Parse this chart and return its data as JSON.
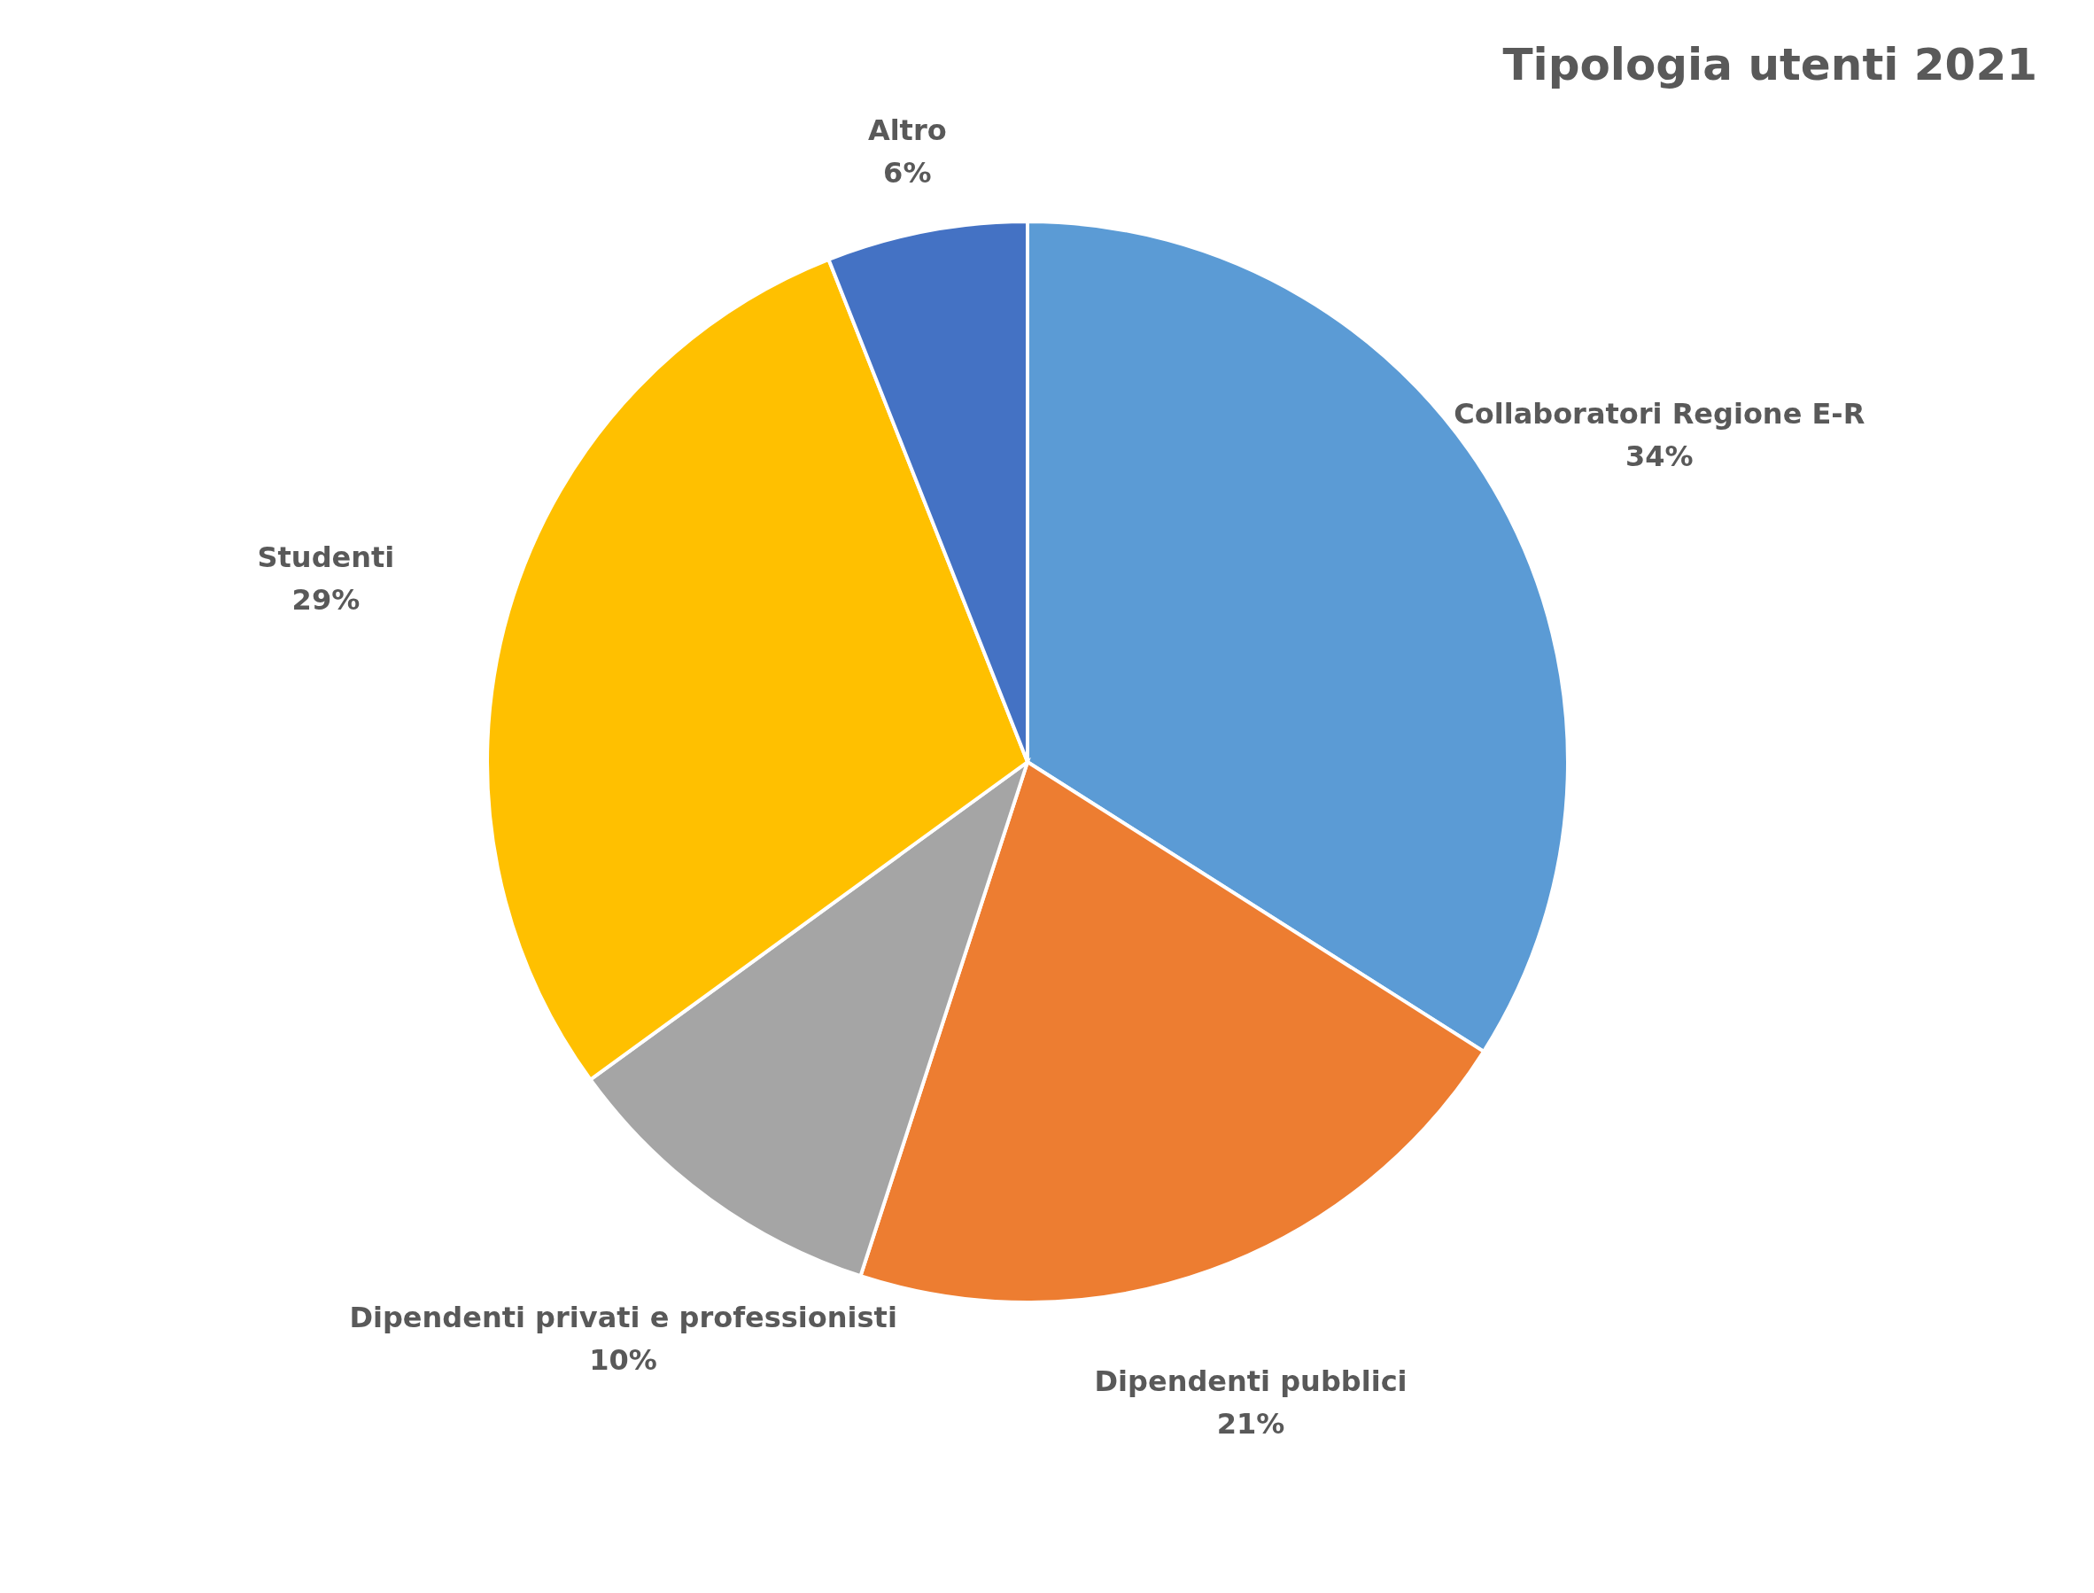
{
  "chart_data": {
    "type": "pie",
    "title": "Tipologia utenti 2021",
    "categories": [
      "Collaboratori Regione E-R",
      "Dipendenti pubblici",
      "Dipendenti privati e professionisti",
      "Studenti",
      "Altro"
    ],
    "values": [
      34,
      21,
      10,
      29,
      6
    ],
    "value_labels": [
      "34%",
      "21%",
      "10%",
      "29%",
      "6%"
    ],
    "colors": [
      "#5b9bd5",
      "#ed7d31",
      "#a5a5a5",
      "#ffc000",
      "#4472c4"
    ]
  }
}
